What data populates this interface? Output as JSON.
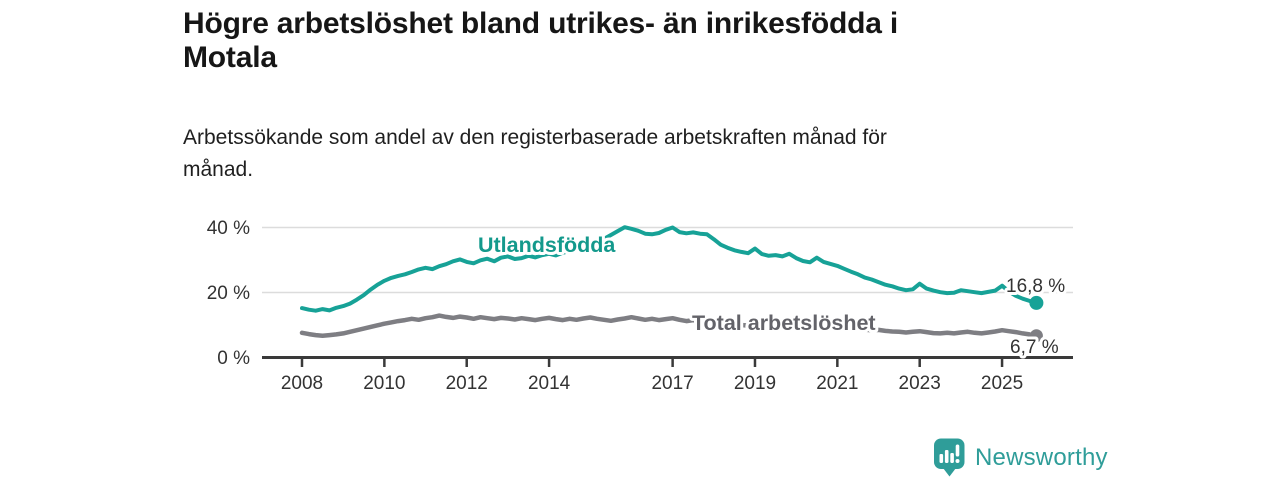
{
  "chart_data": {
    "type": "line",
    "title": "Högre arbetslöshet bland utrikes- än inrikesfödda i Motala",
    "title_lines": [
      "Högre arbetslöshet bland utrikes- än inrikesfödda i",
      "Motala"
    ],
    "subtitle": "Arbetssökande som andel av den registerbaserade arbetskraften månad för månad.",
    "subtitle_lines": [
      "Arbetssökande som andel av den registerbaserade arbetskraften månad för",
      "månad."
    ],
    "unit": "%",
    "grid": "horizontal",
    "grid_y": [
      20,
      40
    ],
    "ylim": [
      0,
      45
    ],
    "xlim": [
      2007,
      2026.8
    ],
    "legend_position": "inline-labels",
    "x_start": 2008.0,
    "x_step": 0.16667,
    "x_ticks": [
      {
        "year": 2008,
        "label": "2008"
      },
      {
        "year": 2010,
        "label": "2010"
      },
      {
        "year": 2012,
        "label": "2012"
      },
      {
        "year": 2014,
        "label": "2014"
      },
      {
        "year": 2017,
        "label": "2017"
      },
      {
        "year": 2019,
        "label": "2019"
      },
      {
        "year": 2021,
        "label": "2021"
      },
      {
        "year": 2023,
        "label": "2023"
      },
      {
        "year": 2025,
        "label": "2025"
      }
    ],
    "y_ticks": [
      {
        "value": 0,
        "label": "0 %"
      },
      {
        "value": 20,
        "label": "20 %"
      },
      {
        "value": 40,
        "label": "40 %"
      }
    ],
    "series": [
      {
        "name": "Utlandsfödda",
        "color": "#17a297",
        "label_color": "#13998c",
        "end_label": "16,8 %",
        "end_value": 16.8,
        "values": [
          15.2,
          14.7,
          14.4,
          14.9,
          14.5,
          15.3,
          15.8,
          16.6,
          17.8,
          19.2,
          20.9,
          22.4,
          23.6,
          24.5,
          25.1,
          25.6,
          26.3,
          27.1,
          27.6,
          27.2,
          28.1,
          28.7,
          29.6,
          30.2,
          29.4,
          29.0,
          29.9,
          30.4,
          29.6,
          30.7,
          31.1,
          30.3,
          30.6,
          31.3,
          30.8,
          31.5,
          31.9,
          31.4,
          32.2,
          32.8,
          33.4,
          34.1,
          34.9,
          35.6,
          36.5,
          37.7,
          38.9,
          40.1,
          39.6,
          39.0,
          38.1,
          37.9,
          38.3,
          39.3,
          40.0,
          38.6,
          38.2,
          38.5,
          38.1,
          37.9,
          36.4,
          34.7,
          33.8,
          33.0,
          32.5,
          32.1,
          33.5,
          31.8,
          31.3,
          31.5,
          31.1,
          31.9,
          30.6,
          29.7,
          29.3,
          30.7,
          29.4,
          28.8,
          28.2,
          27.3,
          26.4,
          25.6,
          24.6,
          24.0,
          23.2,
          22.4,
          21.9,
          21.2,
          20.7,
          21.0,
          22.7,
          21.2,
          20.6,
          20.1,
          19.8,
          19.9,
          20.7,
          20.4,
          20.1,
          19.8,
          20.2,
          20.6,
          22.1,
          20.3,
          19.0,
          18.1,
          17.4,
          16.8
        ]
      },
      {
        "name": "Total arbetslöshet",
        "color": "#7e7e83",
        "label_color": "#636369",
        "end_label": "6,7 %",
        "end_value": 6.7,
        "values": [
          7.6,
          7.2,
          6.9,
          6.7,
          6.9,
          7.1,
          7.4,
          7.9,
          8.4,
          8.9,
          9.4,
          9.9,
          10.4,
          10.8,
          11.2,
          11.5,
          11.9,
          11.6,
          12.1,
          12.4,
          12.9,
          12.5,
          12.2,
          12.6,
          12.3,
          11.9,
          12.4,
          12.1,
          11.8,
          12.2,
          12.0,
          11.7,
          12.1,
          11.8,
          11.5,
          11.9,
          12.2,
          11.8,
          11.5,
          11.9,
          11.6,
          12.0,
          12.3,
          11.9,
          11.6,
          11.3,
          11.7,
          12.0,
          12.4,
          12.0,
          11.6,
          11.9,
          11.5,
          11.8,
          12.1,
          11.6,
          11.2,
          11.5,
          10.9,
          10.7,
          10.9,
          10.5,
          10.2,
          10.4,
          10.0,
          9.8,
          10.0,
          9.6,
          9.4,
          9.6,
          9.3,
          9.5,
          9.7,
          9.9,
          10.3,
          10.6,
          10.2,
          9.9,
          9.7,
          9.4,
          9.1,
          8.8,
          8.6,
          8.4,
          8.5,
          8.2,
          8.0,
          7.9,
          7.7,
          7.9,
          8.1,
          7.8,
          7.5,
          7.4,
          7.6,
          7.4,
          7.7,
          7.9,
          7.6,
          7.4,
          7.7,
          8.0,
          8.4,
          8.1,
          7.8,
          7.4,
          7.1,
          6.7
        ]
      }
    ],
    "axis_color": "#3a3a3a",
    "gridline_color": "#dcdcdc"
  },
  "footer": {
    "brand": "Newsworthy",
    "brand_color": "#2f9d99",
    "logo_icon": "bar-chart-exclamation-bubble-icon"
  }
}
